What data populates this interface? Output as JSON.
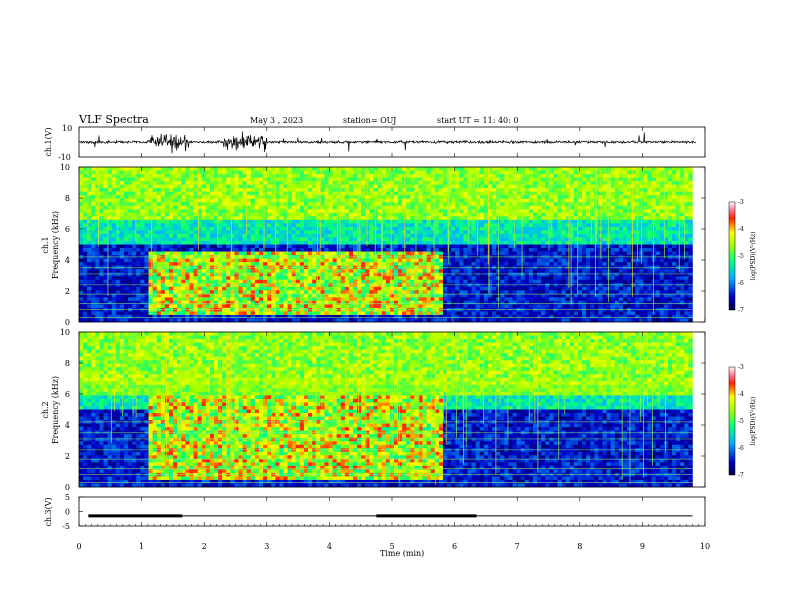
{
  "header": {
    "title": "VLF Spectra",
    "date": "May 3 , 2023",
    "station": "station= OUJ",
    "start": "start UT = 11: 40: 0"
  },
  "chart_data": [
    {
      "type": "line",
      "panel": "ch1-waveform",
      "ylabel": "ch.1(V)",
      "ylim": [
        -10,
        10
      ],
      "yticks": [
        "10",
        "-10"
      ],
      "x": [
        0,
        10
      ],
      "description_values": {
        "baseline_amplitude": 1,
        "burst_regions_min": [
          [
            1.1,
            1.75
          ],
          [
            2.3,
            3.0
          ]
        ]
      }
    },
    {
      "type": "heatmap",
      "panel": "ch1-spectrogram",
      "ylabel": "ch.1\nFrequency (kHz)",
      "ylabel_line1": "ch.1",
      "ylabel_line2": "Frequency (kHz)",
      "ylim": [
        0,
        10
      ],
      "yticks": [
        "0",
        "2",
        "4",
        "6",
        "8",
        "10"
      ],
      "xlim": [
        0,
        10
      ],
      "data_end_min": 9.8,
      "colorbar": {
        "label": "log(PSD)(V²/Hz)",
        "range": [
          -7,
          -3
        ],
        "ticks": [
          "-3",
          "-4",
          "-5",
          "-6",
          "-7"
        ]
      },
      "enhanced_band_khz": [
        0.5,
        4.5
      ],
      "enhanced_interval_min": [
        1.1,
        5.8
      ]
    },
    {
      "type": "heatmap",
      "panel": "ch2-spectrogram",
      "ylabel_line1": "ch.2",
      "ylabel_line2": "Frequency (kHz)",
      "ylim": [
        0,
        10
      ],
      "yticks": [
        "0",
        "2",
        "4",
        "6",
        "8",
        "10"
      ],
      "xlim": [
        0,
        10
      ],
      "data_end_min": 9.8,
      "colorbar": {
        "label": "log(PSD)(V²/Hz)",
        "range": [
          -7,
          -3
        ],
        "ticks": [
          "-3",
          "-4",
          "-5",
          "-6",
          "-7"
        ]
      },
      "enhanced_band_khz": [
        0.5,
        6.0
      ],
      "enhanced_interval_min": [
        1.1,
        5.8
      ]
    },
    {
      "type": "line",
      "panel": "ch3-signal",
      "ylabel": "ch.3(V)",
      "ylim": [
        -5,
        5
      ],
      "yticks": [
        "5",
        "0",
        "-5"
      ],
      "xlabel": "Time (min)",
      "xticks": [
        "0",
        "1",
        "2",
        "3",
        "4",
        "5",
        "6",
        "7",
        "8",
        "9",
        "10"
      ],
      "level_v": -1.5,
      "thick_segments_min": [
        [
          0.15,
          1.65
        ],
        [
          4.75,
          6.35
        ]
      ]
    }
  ]
}
